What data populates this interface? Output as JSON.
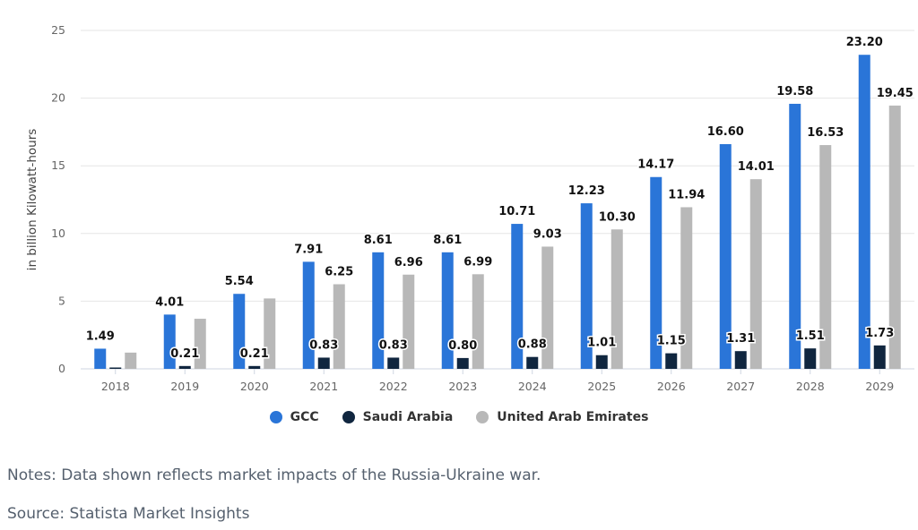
{
  "chart_data": {
    "type": "bar",
    "title": "",
    "xlabel": "",
    "ylabel": "in billion Kilowatt-hours",
    "ylim": [
      0,
      25
    ],
    "yticks": [
      0,
      5,
      10,
      15,
      20,
      25
    ],
    "grid": true,
    "legend_position": "bottom-center",
    "categories": [
      "2018",
      "2019",
      "2020",
      "2021",
      "2022",
      "2023",
      "2024",
      "2025",
      "2026",
      "2027",
      "2028",
      "2029"
    ],
    "series": [
      {
        "name": "GCC",
        "color": "#2a75d8",
        "values": [
          1.49,
          4.01,
          5.54,
          7.91,
          8.61,
          8.61,
          10.71,
          12.23,
          14.17,
          16.6,
          19.58,
          23.2
        ],
        "labels": [
          "1.49",
          "4.01",
          "5.54",
          "7.91",
          "8.61",
          "8.61",
          "10.71",
          "12.23",
          "14.17",
          "16.60",
          "19.58",
          "23.20"
        ]
      },
      {
        "name": "Saudi Arabia",
        "color": "#10263f",
        "values": [
          0.1,
          0.21,
          0.21,
          0.83,
          0.83,
          0.8,
          0.88,
          1.01,
          1.15,
          1.31,
          1.51,
          1.73
        ],
        "labels": [
          "",
          "0.21",
          "0.21",
          "0.83",
          "0.83",
          "0.80",
          "0.88",
          "1.01",
          "1.15",
          "1.31",
          "1.51",
          "1.73"
        ]
      },
      {
        "name": "United Arab Emirates",
        "color": "#b8b8b8",
        "values": [
          1.2,
          3.7,
          5.2,
          6.25,
          6.96,
          6.99,
          9.03,
          10.3,
          11.94,
          14.01,
          16.53,
          19.45
        ],
        "labels": [
          "",
          "",
          "",
          "6.25",
          "6.96",
          "6.99",
          "9.03",
          "10.30",
          "11.94",
          "14.01",
          "16.53",
          "19.45"
        ]
      }
    ]
  },
  "notes": "Notes: Data shown reflects market impacts of the Russia-Ukraine war.",
  "source": "Source: Statista Market Insights"
}
